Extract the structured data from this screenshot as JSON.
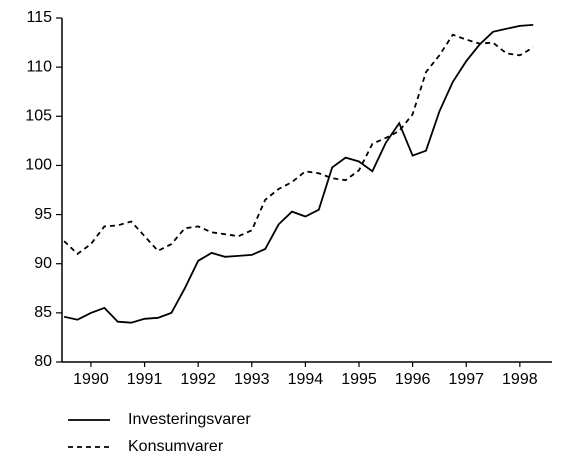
{
  "chart_data": {
    "type": "line",
    "x": [
      1990,
      1990.25,
      1990.5,
      1990.75,
      1991,
      1991.25,
      1991.5,
      1991.75,
      1992,
      1992.25,
      1992.5,
      1992.75,
      1993,
      1993.25,
      1993.5,
      1993.75,
      1994,
      1994.25,
      1994.5,
      1994.75,
      1995,
      1995.25,
      1995.5,
      1995.75,
      1996,
      1996.25,
      1996.5,
      1996.75,
      1997,
      1997.25,
      1997.5,
      1997.75,
      1998,
      1998.25,
      1998.5,
      1998.75
    ],
    "series": [
      {
        "name": "Investeringsvarer",
        "color": "#000000",
        "dash": "solid",
        "values": [
          84.6,
          84.3,
          85.0,
          85.5,
          84.1,
          84.0,
          84.4,
          84.5,
          85.0,
          87.5,
          90.3,
          91.1,
          90.7,
          90.8,
          90.9,
          91.5,
          94.0,
          95.3,
          94.8,
          95.5,
          99.8,
          100.8,
          100.4,
          99.4,
          102.3,
          104.3,
          101.0,
          101.5,
          105.5,
          108.5,
          110.6,
          112.3,
          113.6,
          113.9,
          114.2,
          114.3
        ]
      },
      {
        "name": "Konsumvarer",
        "color": "#000000",
        "dash": "dashed",
        "values": [
          92.3,
          91.0,
          92.0,
          93.8,
          93.9,
          94.3,
          92.8,
          91.3,
          92.0,
          93.6,
          93.8,
          93.2,
          93.0,
          92.8,
          93.4,
          96.5,
          97.6,
          98.3,
          99.4,
          99.2,
          98.7,
          98.5,
          99.5,
          102.2,
          102.8,
          103.5,
          105.2,
          109.5,
          111.2,
          113.3,
          112.8,
          112.4,
          112.5,
          111.4,
          111.2,
          112.0
        ]
      }
    ],
    "xlim": [
      1989.96,
      1999.1
    ],
    "xticks": [
      {
        "value": 1990.5,
        "label": "1990"
      },
      {
        "value": 1991.5,
        "label": "1991"
      },
      {
        "value": 1992.5,
        "label": "1992"
      },
      {
        "value": 1993.5,
        "label": "1993"
      },
      {
        "value": 1994.5,
        "label": "1994"
      },
      {
        "value": 1995.5,
        "label": "1995"
      },
      {
        "value": 1996.5,
        "label": "1996"
      },
      {
        "value": 1997.5,
        "label": "1997"
      },
      {
        "value": 1998.5,
        "label": "1998"
      }
    ],
    "ylim": [
      80,
      115
    ],
    "yticks": [
      80,
      85,
      90,
      95,
      100,
      105,
      110,
      115
    ],
    "legend": "bottom"
  }
}
